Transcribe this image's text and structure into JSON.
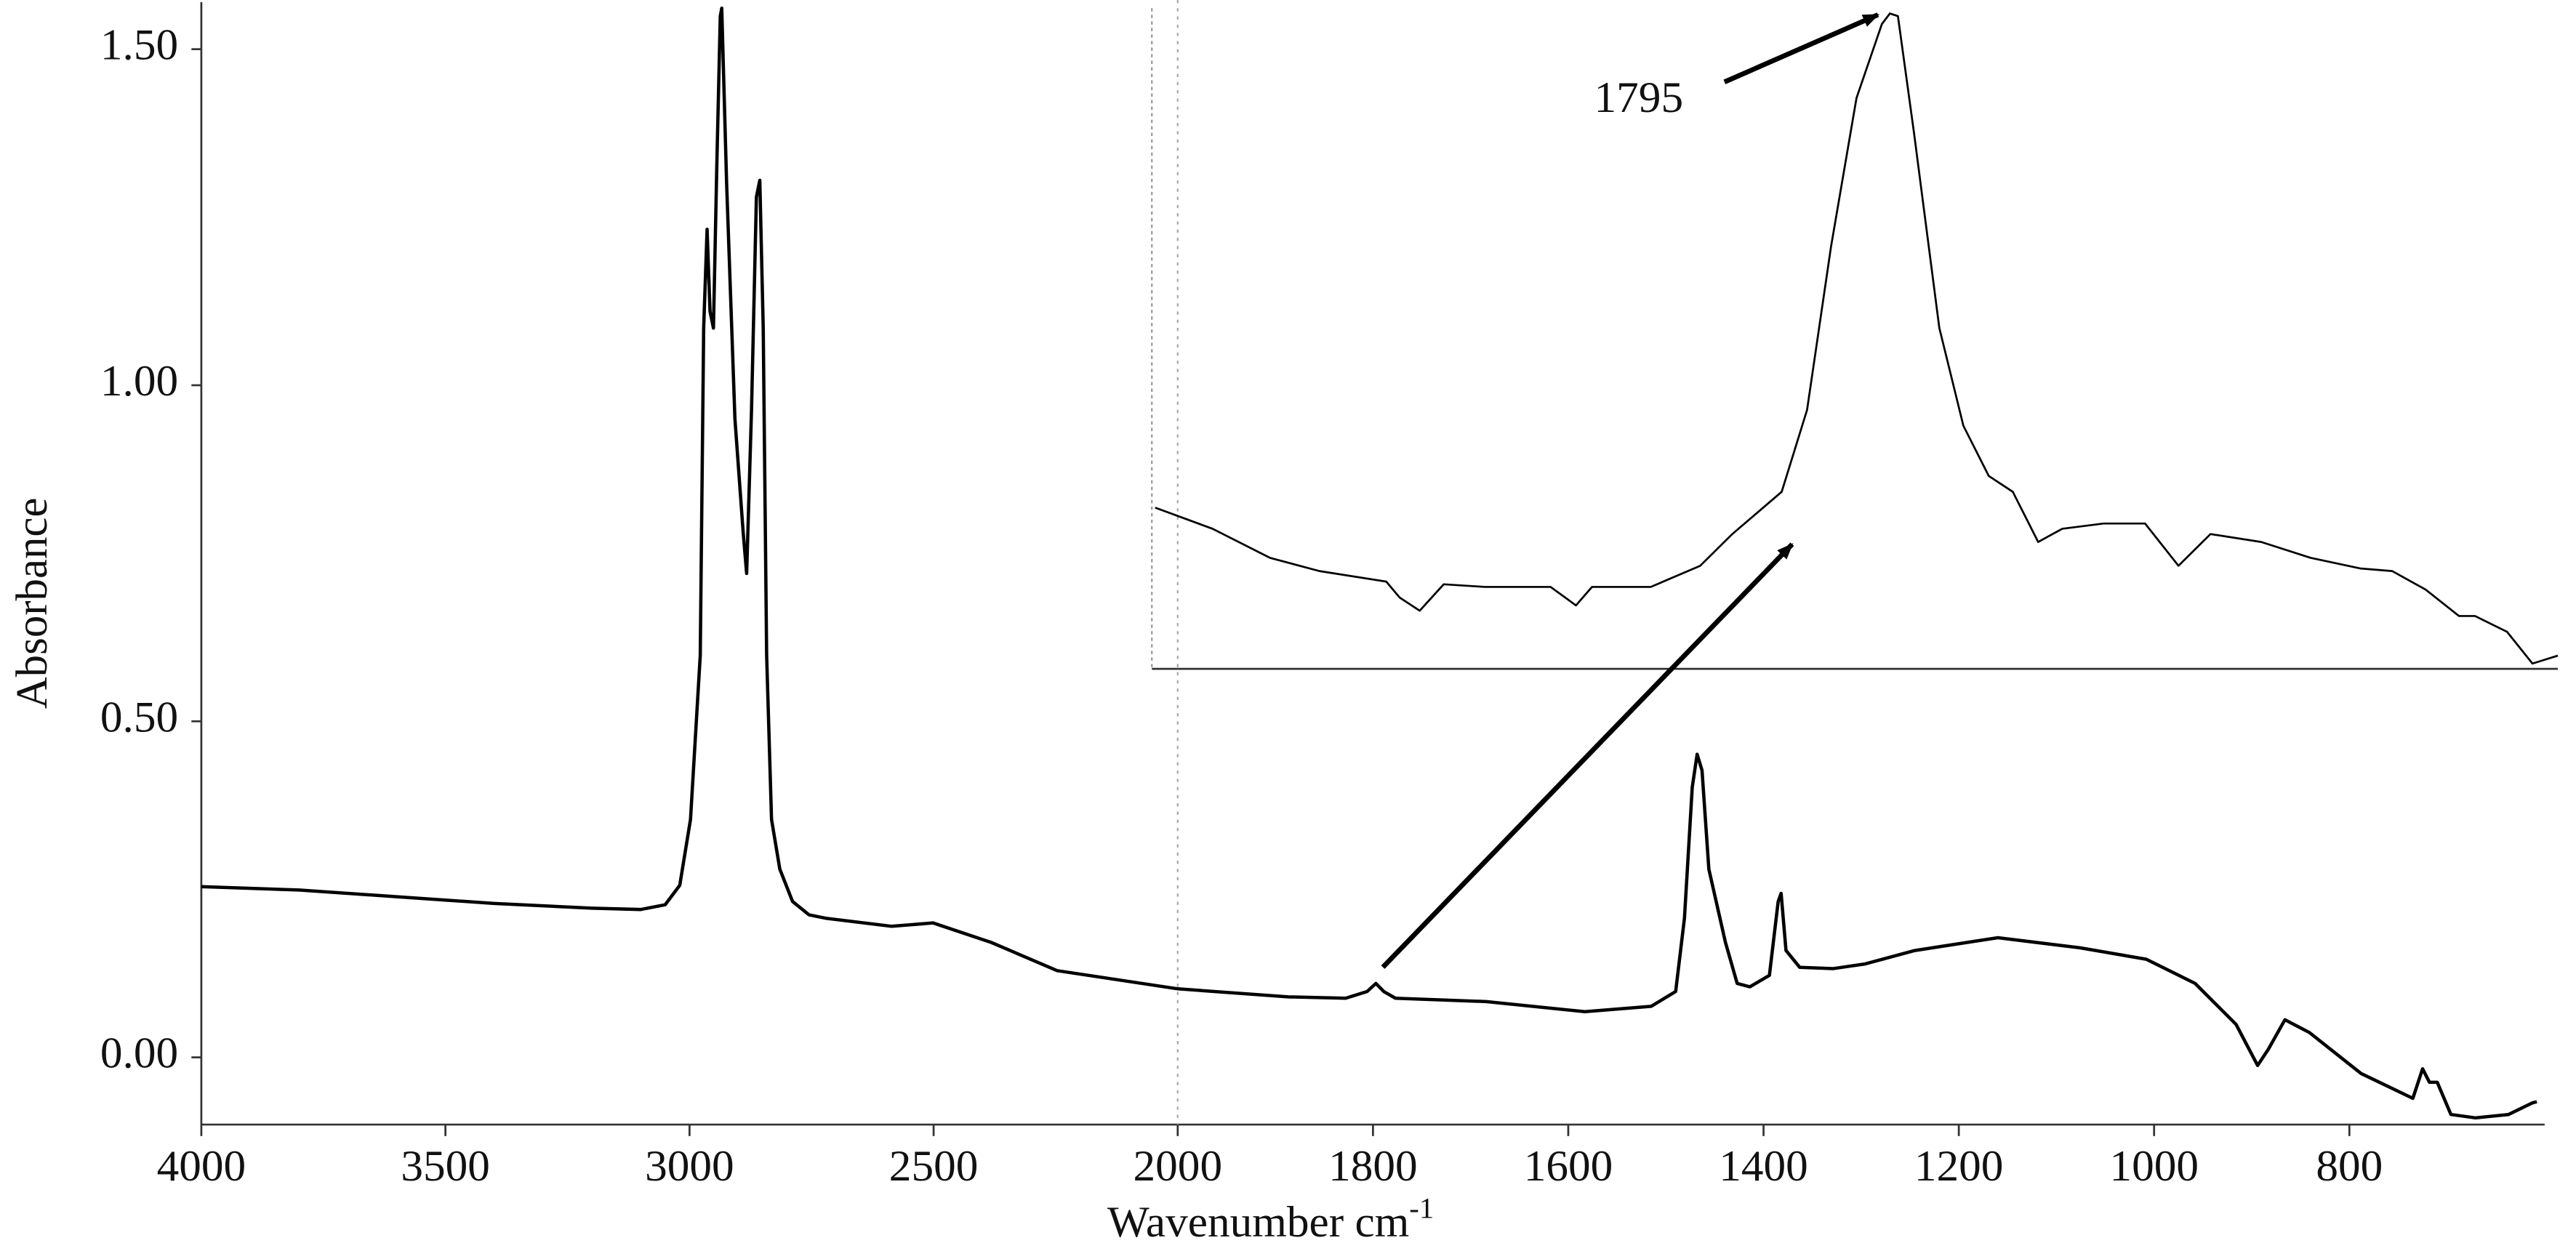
{
  "chart_data": [
    {
      "type": "line",
      "xlabel": "Wavenumber cm",
      "xlabel_superscript": "-1",
      "ylabel": "Absorbance",
      "xlim": [
        4000,
        600
      ],
      "ylim": [
        -0.1,
        1.57
      ],
      "x_expansion": {
        "below": 2000,
        "factor": 2
      },
      "xticks": [
        4000,
        3500,
        3000,
        2500,
        2000,
        1800,
        1600,
        1400,
        1200,
        1000,
        800
      ],
      "yticks": [
        {
          "value": 0,
          "label": "0.00"
        },
        {
          "value": 0.5,
          "label": "0.50"
        },
        {
          "value": 1,
          "label": "1.00"
        },
        {
          "value": 1.5,
          "label": "1.50"
        }
      ],
      "color": "#000000",
      "x": [
        4000,
        3800,
        3600,
        3400,
        3200,
        3100,
        3050,
        3020,
        2998,
        2978,
        2971,
        2964,
        2958,
        2951,
        2944,
        2937,
        2934,
        2924,
        2907,
        2890,
        2883,
        2873,
        2863,
        2856,
        2849,
        2842,
        2832,
        2815,
        2789,
        2755,
        2721,
        2586,
        2501,
        2382,
        2247,
        2000,
        1887,
        1828,
        1806,
        1797,
        1789,
        1777,
        1684,
        1583,
        1515,
        1490,
        1481,
        1473,
        1468,
        1463,
        1456,
        1439,
        1427,
        1414,
        1394,
        1385,
        1382,
        1377,
        1363,
        1329,
        1296,
        1245,
        1160,
        1076,
        1008,
        958,
        916,
        894,
        883,
        866,
        841,
        788,
        735,
        725,
        718,
        710,
        696,
        671,
        637,
        613,
        608
      ],
      "values": [
        0.254,
        0.249,
        0.239,
        0.229,
        0.222,
        0.22,
        0.227,
        0.256,
        0.354,
        0.598,
        1.085,
        1.232,
        1.11,
        1.085,
        1.33,
        1.549,
        1.561,
        1.3,
        0.95,
        0.78,
        0.72,
        0.963,
        1.28,
        1.305,
        1.085,
        0.598,
        0.354,
        0.28,
        0.232,
        0.212,
        0.207,
        0.195,
        0.2,
        0.171,
        0.129,
        0.102,
        0.09,
        0.088,
        0.098,
        0.11,
        0.098,
        0.088,
        0.083,
        0.068,
        0.076,
        0.098,
        0.207,
        0.402,
        0.451,
        0.427,
        0.28,
        0.171,
        0.11,
        0.105,
        0.122,
        0.232,
        0.244,
        0.159,
        0.134,
        0.132,
        0.139,
        0.159,
        0.178,
        0.163,
        0.146,
        0.11,
        0.049,
        -0.012,
        0.012,
        0.056,
        0.037,
        -0.024,
        -0.061,
        -0.017,
        -0.037,
        -0.037,
        -0.085,
        -0.09,
        -0.085,
        -0.068,
        -0.066
      ]
    },
    {
      "type": "line",
      "annotation": "1795",
      "xlim": [
        1850,
        1745
      ],
      "ylim": [
        0.08,
        0.105
      ],
      "color": "#000000",
      "x": [
        1850,
        1845.7,
        1841.4,
        1837.7,
        1832.7,
        1831.7,
        1830.2,
        1828.4,
        1825.3,
        1820.4,
        1818.5,
        1817.3,
        1812.9,
        1809.2,
        1806.8,
        1803.1,
        1801.2,
        1799.4,
        1797.5,
        1795.6,
        1795.0,
        1794.4,
        1793.2,
        1791.3,
        1789.5,
        1787.6,
        1785.8,
        1783.9,
        1782.1,
        1779.0,
        1775.9,
        1773.4,
        1771.0,
        1767.2,
        1763.5,
        1759.8,
        1757.4,
        1754.9,
        1752.4,
        1751.2,
        1748.8,
        1746.9,
        1745.0
      ],
      "values": [
        0.0861,
        0.0853,
        0.0842,
        0.0837,
        0.0833,
        0.0827,
        0.0822,
        0.0832,
        0.0831,
        0.0831,
        0.0824,
        0.0831,
        0.0831,
        0.0839,
        0.0851,
        0.0867,
        0.0898,
        0.096,
        0.1016,
        0.1044,
        0.1048,
        0.1047,
        0.1003,
        0.0929,
        0.0892,
        0.0873,
        0.0867,
        0.0848,
        0.0853,
        0.0855,
        0.0855,
        0.0839,
        0.0851,
        0.0848,
        0.0842,
        0.0838,
        0.0837,
        0.083,
        0.082,
        0.082,
        0.0814,
        0.0802,
        0.0805
      ]
    }
  ]
}
